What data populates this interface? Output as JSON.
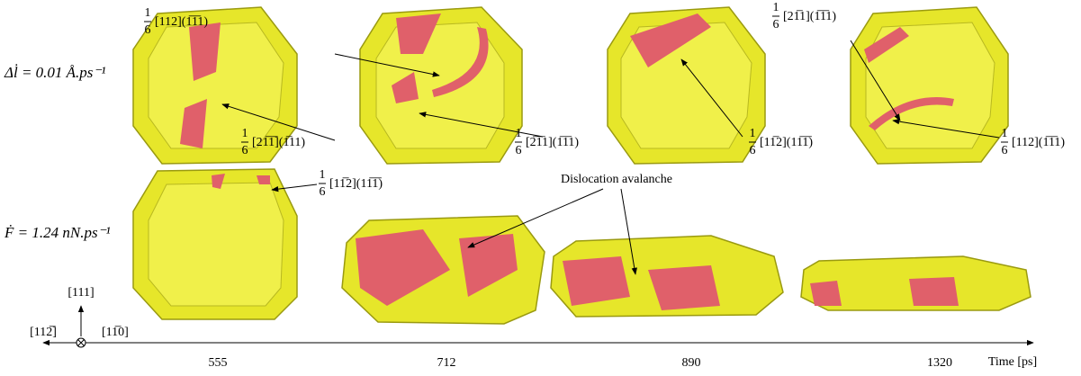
{
  "row_labels": [
    "Δl̇ = 0.01 Å.ps⁻¹",
    "Ḟ = 1.24 nN.ps⁻¹"
  ],
  "annotations": [
    {
      "numerator": "1",
      "denominator": "6",
      "index": "[21̅1̅](1̅11)"
    },
    {
      "numerator": "1",
      "denominator": "6",
      "index": "[112](1̅1̅1)"
    },
    {
      "numerator": "1",
      "denominator": "6",
      "index": "[2̅1̅1](1̅1̅1)"
    },
    {
      "numerator": "1",
      "denominator": "6",
      "index": "[11̅2](11̅1̅)"
    },
    {
      "numerator": "1",
      "denominator": "6",
      "index": "[21̅1](1̅1̅1)"
    },
    {
      "numerator": "1",
      "denominator": "6",
      "index": "[112](1̅1̅1)"
    },
    {
      "numerator": "1",
      "denominator": "6",
      "index": "[11̅2](11̅1̅)"
    }
  ],
  "avalanche_label": "Dislocation avalanche",
  "time_axis": {
    "times": [
      555,
      712,
      890,
      1320
    ],
    "label": "Time [ps]"
  },
  "orientation": {
    "up": "[111]",
    "left": "[112̅]",
    "out": "[11̅0]"
  }
}
